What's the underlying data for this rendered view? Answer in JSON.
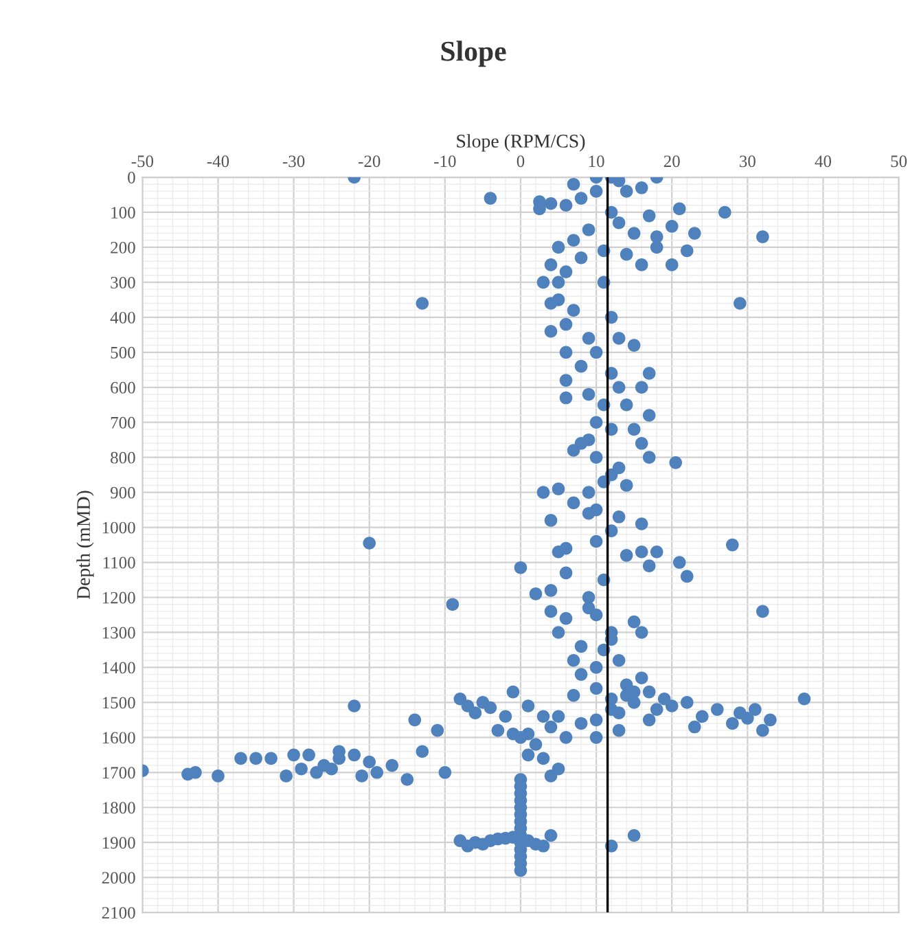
{
  "chart_data": {
    "type": "scatter",
    "title": "Slope",
    "xlabel": "Slope (RPM/CS)",
    "ylabel": "Depth (mMD)",
    "xlim": [
      -50,
      50
    ],
    "xticks": [
      -50,
      -40,
      -30,
      -20,
      -10,
      0,
      10,
      20,
      30,
      40,
      50
    ],
    "ylim": [
      2100,
      0
    ],
    "yticks": [
      0,
      100,
      200,
      300,
      400,
      500,
      600,
      700,
      800,
      900,
      1000,
      1100,
      1200,
      1300,
      1400,
      1500,
      1600,
      1700,
      1800,
      1900,
      2000,
      2100
    ],
    "grid": true,
    "marker": "circle",
    "legend": false,
    "ref_lines": [
      {
        "axis": "x",
        "value": 11.5,
        "color": "#000000"
      }
    ],
    "series": [
      {
        "color": "#4f81bd",
        "x": [
          -22,
          -4,
          27,
          32,
          -13,
          29,
          -20,
          28,
          -9,
          0,
          32,
          20.5,
          37.5,
          7,
          10,
          12,
          13,
          18,
          2.5,
          2.5,
          4,
          6,
          8,
          10,
          14,
          16,
          21,
          17,
          20,
          23,
          22,
          20,
          18,
          15,
          13,
          9,
          7,
          5,
          4,
          6,
          3,
          5,
          8,
          11,
          14,
          16,
          18,
          12,
          5,
          4,
          7,
          6,
          4,
          9,
          13,
          15,
          6,
          8,
          12,
          6,
          17,
          16,
          6,
          9,
          14,
          17,
          10,
          12,
          15,
          8,
          16,
          7,
          10,
          13,
          17,
          11,
          14,
          9,
          11,
          12,
          10,
          13,
          11,
          9,
          12,
          10,
          3,
          5,
          7,
          9,
          4,
          13,
          16,
          12,
          10,
          6,
          14,
          16,
          18,
          21,
          22,
          17,
          5,
          6,
          4,
          2,
          4,
          6,
          9,
          15,
          16,
          12,
          8,
          5,
          7,
          10,
          13,
          16,
          14,
          10,
          7,
          12,
          15,
          8,
          11,
          9,
          11,
          10,
          12,
          14,
          17,
          13,
          15,
          18,
          17,
          19,
          20,
          22,
          24,
          26,
          29,
          30,
          31,
          33,
          32,
          28,
          23,
          13,
          12,
          10,
          8,
          5,
          3,
          4,
          6,
          10,
          -8,
          -7,
          -5,
          -4,
          -2,
          -6,
          -1,
          1,
          -14,
          -22,
          -11,
          -13,
          -3,
          -1,
          1,
          0,
          2,
          -24,
          -24,
          -28,
          -30,
          -33,
          -35,
          -37,
          -40,
          -43,
          -44,
          -50,
          -31,
          -27,
          -25,
          -22,
          -20,
          -19,
          -17,
          -15,
          -10,
          -21,
          -26,
          -29,
          1,
          3,
          4,
          5,
          0,
          0,
          0,
          0,
          0,
          0,
          0,
          0,
          0,
          0,
          0,
          0,
          0,
          0,
          -8,
          -7,
          -6,
          -5,
          -4,
          -3,
          -2,
          -1,
          1,
          2,
          3,
          4,
          12,
          15
        ],
        "values": [
          0,
          60,
          100,
          170,
          360,
          360,
          1045,
          1050,
          1220,
          1115,
          1240,
          815,
          1490,
          20,
          0,
          0,
          10,
          0,
          70,
          90,
          75,
          80,
          60,
          40,
          40,
          30,
          90,
          110,
          140,
          160,
          210,
          250,
          200,
          160,
          130,
          150,
          180,
          200,
          250,
          270,
          300,
          300,
          230,
          210,
          220,
          250,
          170,
          100,
          350,
          360,
          380,
          420,
          440,
          460,
          460,
          480,
          500,
          540,
          560,
          580,
          560,
          600,
          630,
          620,
          650,
          680,
          700,
          720,
          720,
          760,
          760,
          780,
          800,
          830,
          800,
          870,
          880,
          900,
          300,
          400,
          500,
          600,
          650,
          750,
          850,
          950,
          900,
          890,
          930,
          960,
          980,
          970,
          990,
          1010,
          1040,
          1060,
          1080,
          1070,
          1070,
          1100,
          1140,
          1110,
          1070,
          1130,
          1180,
          1190,
          1240,
          1260,
          1230,
          1270,
          1300,
          1320,
          1340,
          1300,
          1380,
          1400,
          1380,
          1430,
          1450,
          1460,
          1480,
          1490,
          1470,
          1420,
          1350,
          1200,
          1150,
          1250,
          1300,
          1480,
          1470,
          1530,
          1500,
          1520,
          1550,
          1490,
          1510,
          1500,
          1540,
          1520,
          1530,
          1545,
          1520,
          1550,
          1580,
          1560,
          1570,
          1580,
          1520,
          1550,
          1560,
          1540,
          1540,
          1570,
          1600,
          1600,
          1490,
          1510,
          1500,
          1515,
          1540,
          1530,
          1470,
          1510,
          1550,
          1510,
          1580,
          1640,
          1580,
          1590,
          1590,
          1600,
          1620,
          1640,
          1660,
          1650,
          1650,
          1660,
          1660,
          1660,
          1710,
          1700,
          1705,
          1695,
          1710,
          1700,
          1690,
          1650,
          1670,
          1700,
          1680,
          1720,
          1700,
          1710,
          1680,
          1690,
          1650,
          1660,
          1710,
          1690,
          1720,
          1740,
          1760,
          1780,
          1800,
          1820,
          1840,
          1860,
          1880,
          1900,
          1920,
          1940,
          1960,
          1980,
          1895,
          1910,
          1900,
          1905,
          1895,
          1890,
          1888,
          1885,
          1895,
          1905,
          1910,
          1880,
          1910,
          1880
        ]
      }
    ]
  }
}
